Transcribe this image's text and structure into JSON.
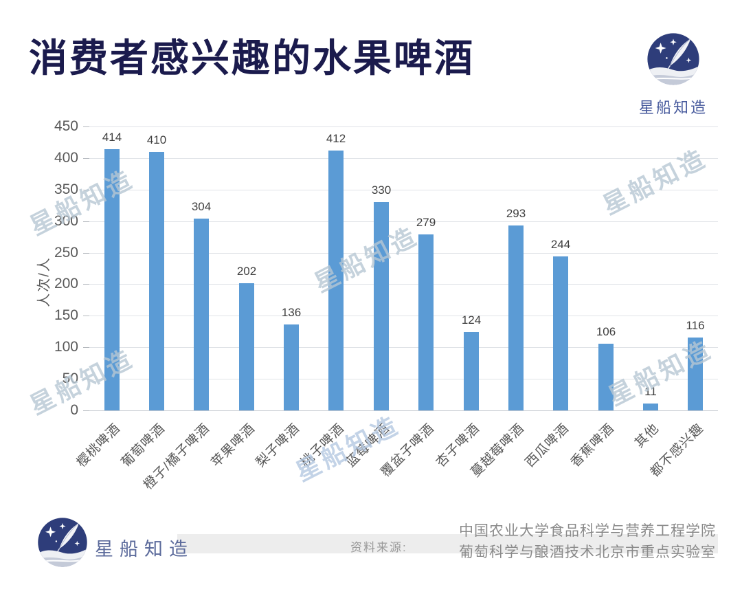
{
  "header": {
    "title": "消费者感兴趣的水果啤酒"
  },
  "brand": {
    "name": "星船知造",
    "logo_icon": "star-ship-feather-logo"
  },
  "watermark": {
    "text": "星船知造"
  },
  "chart_data": {
    "type": "bar",
    "title": "消费者感兴趣的水果啤酒",
    "categories": [
      "樱桃啤酒",
      "葡萄啤酒",
      "橙子/橘子啤酒",
      "苹果啤酒",
      "梨子啤酒",
      "桃子啤酒",
      "蓝莓啤酒",
      "覆盆子啤酒",
      "杏子啤酒",
      "蔓越莓啤酒",
      "西瓜啤酒",
      "香蕉啤酒",
      "其他",
      "都不感兴趣"
    ],
    "values": [
      414,
      410,
      304,
      202,
      136,
      412,
      330,
      279,
      124,
      293,
      244,
      106,
      11,
      116
    ],
    "xlabel": "",
    "ylabel": "人次/人",
    "ylim": [
      0,
      450
    ],
    "yticks": [
      0,
      50,
      100,
      150,
      200,
      250,
      300,
      350,
      400,
      450
    ],
    "grid": true,
    "legend": "none",
    "bar_color": "#5B9BD5"
  },
  "footer": {
    "brand_name": "星船知造",
    "source_label": "资料来源:",
    "source_lines": [
      "中国农业大学食品科学与营养工程学院",
      "葡萄科学与酿酒技术北京市重点实验室"
    ]
  },
  "colors": {
    "bar": "#5B9BD5",
    "title_text": "#1b1b4d",
    "brand_text": "#46599c",
    "watermark": "#b7c7d3",
    "grid": "#e0e3e7",
    "axis_text": "#595959",
    "value_label": "#3f3f3f",
    "source_text": "#8a8a8a",
    "logo_navy": "#2e3d7a"
  }
}
